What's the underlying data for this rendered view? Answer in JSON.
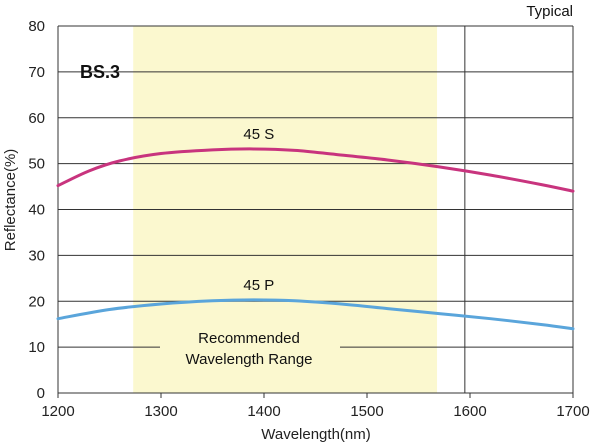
{
  "chart_data": {
    "type": "line",
    "title": "BS.3",
    "corner_note": "Typical",
    "xlabel": "Wavelength(nm)",
    "ylabel": "Reflectance(%)",
    "xlim": [
      1200,
      1700
    ],
    "ylim": [
      0,
      80
    ],
    "x_ticks": [
      1200,
      1300,
      1400,
      1500,
      1600,
      1700
    ],
    "y_ticks": [
      0,
      10,
      20,
      30,
      40,
      50,
      60,
      70,
      80
    ],
    "grid": "horizontal",
    "highlight_band": {
      "x_range": [
        1273,
        1568
      ],
      "color": "#fbf8cf",
      "label_line1": "Recommended",
      "label_line2": "Wavelength Range"
    },
    "vertical_marker_x": 1595,
    "series": [
      {
        "name": "45 S",
        "color": "#c8347e",
        "x": [
          1200,
          1230,
          1260,
          1300,
          1350,
          1390,
          1430,
          1470,
          1520,
          1570,
          1620,
          1670,
          1700
        ],
        "values": [
          45.2,
          48.4,
          50.6,
          52.2,
          53.0,
          53.2,
          52.9,
          52.0,
          50.8,
          49.3,
          47.5,
          45.4,
          44.0
        ]
      },
      {
        "name": "45 P",
        "color": "#5aa5db",
        "x": [
          1200,
          1250,
          1300,
          1350,
          1390,
          1430,
          1480,
          1520,
          1570,
          1620,
          1670,
          1700
        ],
        "values": [
          16.2,
          18.2,
          19.4,
          20.1,
          20.3,
          20.1,
          19.3,
          18.4,
          17.3,
          16.2,
          14.9,
          14.0
        ]
      }
    ]
  }
}
